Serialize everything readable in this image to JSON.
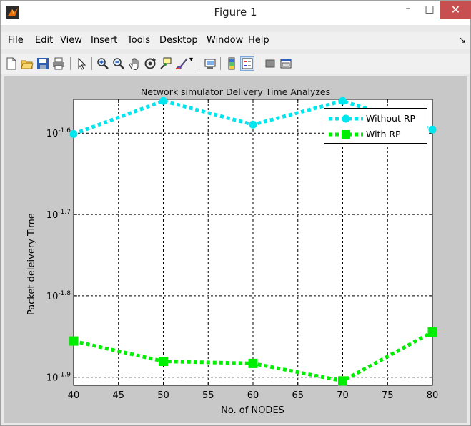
{
  "window": {
    "title": "Figure 1"
  },
  "window_buttons": {
    "minimize": "–",
    "maximize": "□",
    "close": "✕"
  },
  "menu": [
    "File",
    "Edit",
    "View",
    "Insert",
    "Tools",
    "Desktop",
    "Window",
    "Help"
  ],
  "menu_arrow": "↘",
  "toolbar_icons": [
    "new-figure-icon",
    "open-icon",
    "save-icon",
    "print-icon",
    "pointer-icon",
    "zoom-in-icon",
    "zoom-out-icon",
    "pan-icon",
    "rotate-icon",
    "data-cursor-icon",
    "brush-icon",
    "link-icon",
    "colorbar-icon",
    "legend-icon",
    "hide-plot-tools-icon",
    "show-plot-tools-icon"
  ],
  "chart_data": {
    "type": "line",
    "title": "Network simulator Delivery Time Analyzes",
    "xlabel": "No. of NODES",
    "ylabel": "Packet deleivery Time",
    "xlim": [
      40,
      80
    ],
    "ylim_log10": [
      -1.9099,
      -1.5585
    ],
    "y_scale": "log",
    "grid": true,
    "legend_position": "top-right",
    "x_ticks": [
      "40",
      "45",
      "50",
      "55",
      "60",
      "65",
      "70",
      "75",
      "80"
    ],
    "y_ticks": [
      {
        "base": "10",
        "exp": "-1.6"
      },
      {
        "base": "10",
        "exp": "-1.7"
      },
      {
        "base": "10",
        "exp": "-1.8"
      },
      {
        "base": "10",
        "exp": "-1.9"
      }
    ],
    "x": [
      40,
      50,
      60,
      70,
      80
    ],
    "series": [
      {
        "name": "Without RP",
        "color": "#00e5ee",
        "marker": "circle",
        "style": "dotted",
        "values_log10": [
          -1.601,
          -1.5605,
          -1.5895,
          -1.5605,
          -1.5955
        ]
      },
      {
        "name": "With RP",
        "color": "#00ee00",
        "marker": "square",
        "style": "dotted",
        "values_log10": [
          -1.8555,
          -1.8805,
          -1.883,
          -1.9045,
          -1.8445
        ]
      }
    ]
  },
  "colors": {
    "axes_bg": "#ffffff",
    "figure_bg": "#c8c8c8",
    "close_btn": "#c74f4f"
  }
}
